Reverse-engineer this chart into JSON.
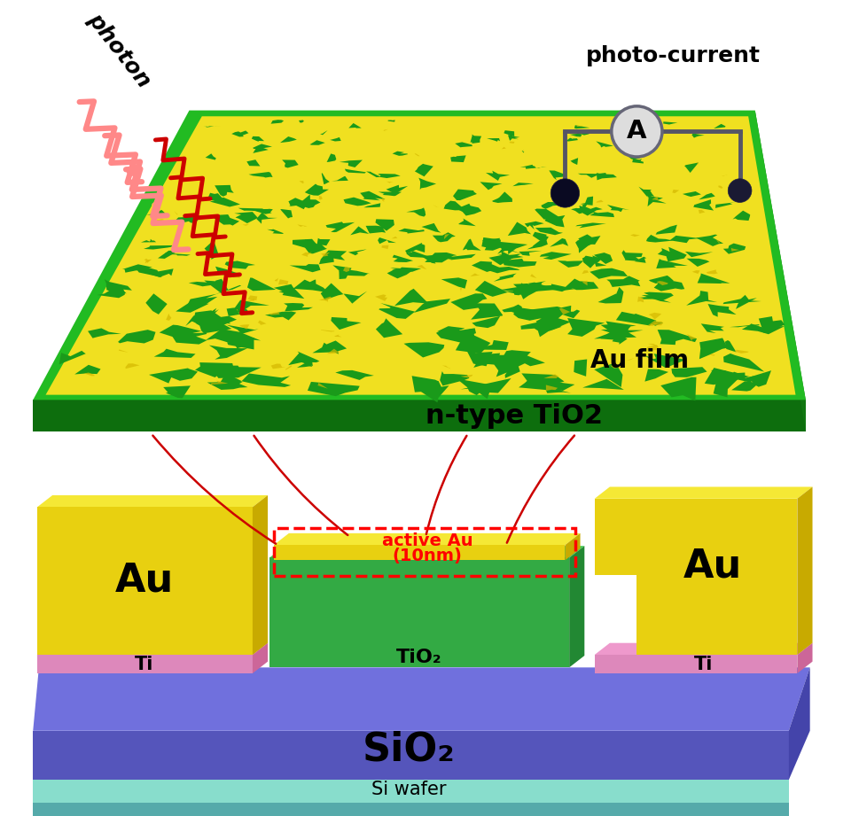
{
  "bg_color": "#ffffff",
  "top_block": {
    "tio2_top_color": "#22bb22",
    "tio2_side_color": "#117711",
    "tio2_front_color": "#0d6e0d",
    "au_film_color": "#f0e020",
    "au_film_dark": "#b8a800",
    "tio2_hole_color": "#1a9a1a",
    "label_au_film": "Au film",
    "label_tio2": "n-type TiO2",
    "photon_label": "photon",
    "photo_current_label": "photo-current",
    "wire_color": "#555566",
    "ammeter_face": "#dddddd",
    "probe_color": "#111133"
  },
  "bottom_block": {
    "sio2_top_color": "#7070dd",
    "sio2_side_color": "#4444aa",
    "sio2_front_color": "#5555bb",
    "si_top_color": "#88ddcc",
    "si_front_color": "#55aaaa",
    "si_label": "Si wafer",
    "sio2_label": "SiO₂",
    "ti_top_color": "#ee99cc",
    "ti_side_color": "#cc6699",
    "ti_front_color": "#dd88bb",
    "ti_label": "Ti",
    "au_top_color": "#f5e835",
    "au_side_color": "#c8aa00",
    "au_front_color": "#e8d010",
    "au_label": "Au",
    "tio2_top_color": "#44cc55",
    "tio2_side_color": "#228833",
    "tio2_front_color": "#33aa44",
    "tio2_label": "TiO₂",
    "active_label_line1": "active Au",
    "active_label_line2": "(10nm)"
  },
  "red_line_color": "#cc0000",
  "photon_pink": "#ff8888",
  "photon_red": "#cc0000"
}
